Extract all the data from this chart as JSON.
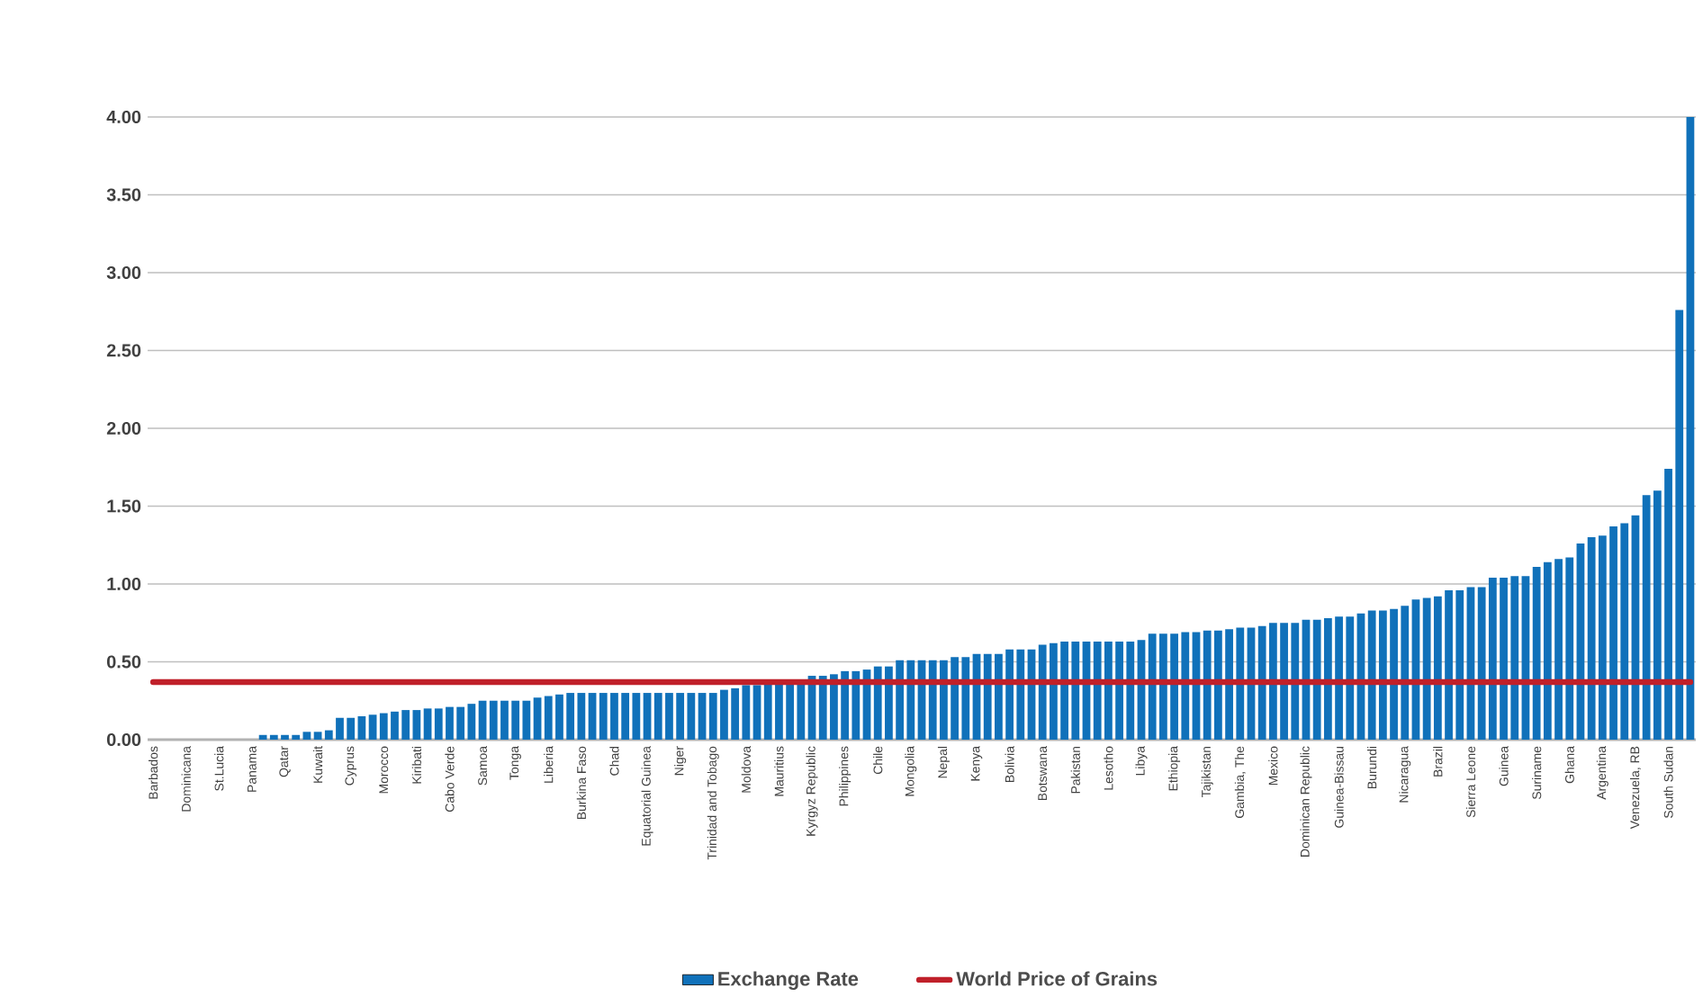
{
  "chart_data": {
    "type": "bar",
    "categories": [
      "Barbados",
      null,
      null,
      "Dominicana",
      null,
      null,
      "St.Lucia",
      null,
      null,
      "Panama",
      null,
      null,
      "Qatar",
      null,
      null,
      "Kuwait",
      null,
      null,
      "Cyprus",
      null,
      null,
      "Morocco",
      null,
      null,
      "Kiribati",
      null,
      null,
      "Cabo Verde",
      null,
      null,
      "Samoa",
      null,
      null,
      "Tonga",
      null,
      null,
      "Liberia",
      null,
      null,
      "Burkina Faso",
      null,
      null,
      "Chad",
      null,
      null,
      "Equatorial Guinea",
      null,
      null,
      "Niger",
      null,
      null,
      "Trinidad and Tobago",
      null,
      null,
      "Moldova",
      null,
      null,
      "Mauritius",
      null,
      null,
      "Kyrgyz Republic",
      null,
      null,
      "Philippines",
      null,
      null,
      "Chile",
      null,
      null,
      "Mongolia",
      null,
      null,
      "Nepal",
      null,
      null,
      "Kenya",
      null,
      null,
      "Bolivia",
      null,
      null,
      "Botswana",
      null,
      null,
      "Pakistan",
      null,
      null,
      "Lesotho",
      null,
      null,
      "Libya",
      null,
      null,
      "Ethiopia",
      null,
      null,
      "Tajikistan",
      null,
      null,
      "Gambia, The",
      null,
      null,
      "Mexico",
      null,
      null,
      "Dominican Republic",
      null,
      null,
      "Guinea-Bissau",
      null,
      null,
      "Burundi",
      null,
      null,
      "Nicaragua",
      null,
      null,
      "Brazil",
      null,
      null,
      "Sierra Leone",
      null,
      null,
      "Guinea",
      null,
      null,
      "Suriname",
      null,
      null,
      "Ghana",
      null,
      null,
      "Argentina",
      null,
      null,
      "Venezuela, RB",
      null,
      null,
      "South Sudan",
      null,
      null
    ],
    "series": [
      {
        "name": "Exchange Rate",
        "color": "#1071ba",
        "values": [
          0,
          0,
          0,
          0,
          0,
          0,
          0,
          0,
          0,
          0,
          0.03,
          0.03,
          0.03,
          0.03,
          0.05,
          0.05,
          0.06,
          0.14,
          0.14,
          0.15,
          0.16,
          0.17,
          0.18,
          0.19,
          0.19,
          0.2,
          0.2,
          0.21,
          0.21,
          0.23,
          0.25,
          0.25,
          0.25,
          0.25,
          0.25,
          0.27,
          0.28,
          0.29,
          0.3,
          0.3,
          0.3,
          0.3,
          0.3,
          0.3,
          0.3,
          0.3,
          0.3,
          0.3,
          0.3,
          0.3,
          0.3,
          0.3,
          0.32,
          0.33,
          0.35,
          0.35,
          0.36,
          0.36,
          0.36,
          0.37,
          0.41,
          0.41,
          0.42,
          0.44,
          0.44,
          0.45,
          0.47,
          0.47,
          0.51,
          0.51,
          0.51,
          0.51,
          0.51,
          0.53,
          0.53,
          0.55,
          0.55,
          0.55,
          0.58,
          0.58,
          0.58,
          0.61,
          0.62,
          0.63,
          0.63,
          0.63,
          0.63,
          0.63,
          0.63,
          0.63,
          0.64,
          0.68,
          0.68,
          0.68,
          0.69,
          0.69,
          0.7,
          0.7,
          0.71,
          0.72,
          0.72,
          0.73,
          0.75,
          0.75,
          0.75,
          0.77,
          0.77,
          0.78,
          0.79,
          0.79,
          0.81,
          0.83,
          0.83,
          0.84,
          0.86,
          0.9,
          0.91,
          0.92,
          0.96,
          0.96,
          0.98,
          0.98,
          1.04,
          1.04,
          1.05,
          1.05,
          1.11,
          1.14,
          1.16,
          1.17,
          1.26,
          1.3,
          1.31,
          1.37,
          1.39,
          1.44,
          1.57,
          1.6,
          1.74,
          2.76,
          4.0
        ]
      },
      {
        "name": "World Price of Grains",
        "type": "line",
        "color": "#c0202a",
        "values": [
          0.37,
          0.37,
          0.37,
          0.37,
          0.37,
          0.37,
          0.37,
          0.37,
          0.37,
          0.37,
          0.37,
          0.37,
          0.37,
          0.37,
          0.37,
          0.37,
          0.37,
          0.37,
          0.37,
          0.37,
          0.37,
          0.37,
          0.37,
          0.37,
          0.37,
          0.37,
          0.37,
          0.37,
          0.37,
          0.37,
          0.37,
          0.37,
          0.37,
          0.37,
          0.37,
          0.37,
          0.37,
          0.37,
          0.37,
          0.37,
          0.37,
          0.37,
          0.37,
          0.37,
          0.37,
          0.37,
          0.37,
          0.37,
          0.37,
          0.37,
          0.37,
          0.37,
          0.37,
          0.37,
          0.37,
          0.37,
          0.37,
          0.37,
          0.37,
          0.37,
          0.37,
          0.37,
          0.37,
          0.37,
          0.37,
          0.37,
          0.37,
          0.37,
          0.37,
          0.37,
          0.37,
          0.37,
          0.37,
          0.37,
          0.37,
          0.37,
          0.37,
          0.37,
          0.37,
          0.37,
          0.37,
          0.37,
          0.37,
          0.37,
          0.37,
          0.37,
          0.37,
          0.37,
          0.37,
          0.37,
          0.37,
          0.37,
          0.37,
          0.37,
          0.37,
          0.37,
          0.37,
          0.37,
          0.37,
          0.37,
          0.37,
          0.37,
          0.37,
          0.37,
          0.37,
          0.37,
          0.37,
          0.37,
          0.37,
          0.37,
          0.37,
          0.37,
          0.37,
          0.37,
          0.37,
          0.37,
          0.37,
          0.37,
          0.37,
          0.37,
          0.37,
          0.37,
          0.37,
          0.37,
          0.37,
          0.37,
          0.37,
          0.37,
          0.37,
          0.37,
          0.37,
          0.37,
          0.37,
          0.37,
          0.37,
          0.37,
          0.37,
          0.37,
          0.37,
          0.37,
          0.37
        ]
      }
    ],
    "ylim": [
      0,
      4
    ],
    "yticks": [
      {
        "value": 0,
        "label": "0.00"
      },
      {
        "value": 0.5,
        "label": "0.50"
      },
      {
        "value": 1,
        "label": "1.00"
      },
      {
        "value": 1.5,
        "label": "1.50"
      },
      {
        "value": 2,
        "label": "2.00"
      },
      {
        "value": 2.5,
        "label": "2.50"
      },
      {
        "value": 3,
        "label": "3.00"
      },
      {
        "value": 3.5,
        "label": "3.50"
      },
      {
        "value": 4,
        "label": "4.00"
      }
    ],
    "grid": "y",
    "legend": "bottom"
  }
}
